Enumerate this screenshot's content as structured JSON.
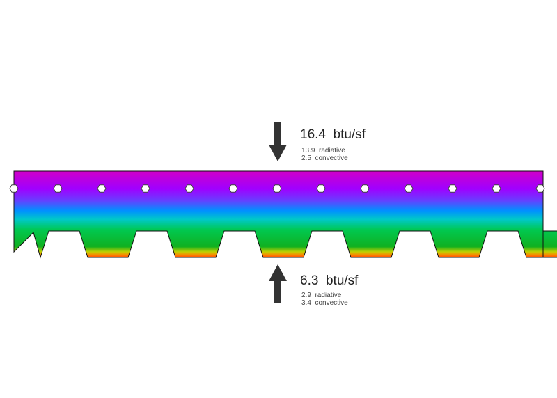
{
  "top_flux": {
    "total": "16.4  btu/sf",
    "radiative": "13.9  radiative",
    "convective": "2.5  convective"
  },
  "bottom_flux": {
    "total": "6.3  btu/sf",
    "radiative": "2.9  radiative",
    "convective": "3.4  convective"
  },
  "colors": {
    "hot": "#c80096",
    "warm": "#9600ff",
    "mid": "#0096ff",
    "cool": "#00c864",
    "cold_edge": "#ffff00",
    "coldest": "#ff3000",
    "arrow": "#333333"
  }
}
